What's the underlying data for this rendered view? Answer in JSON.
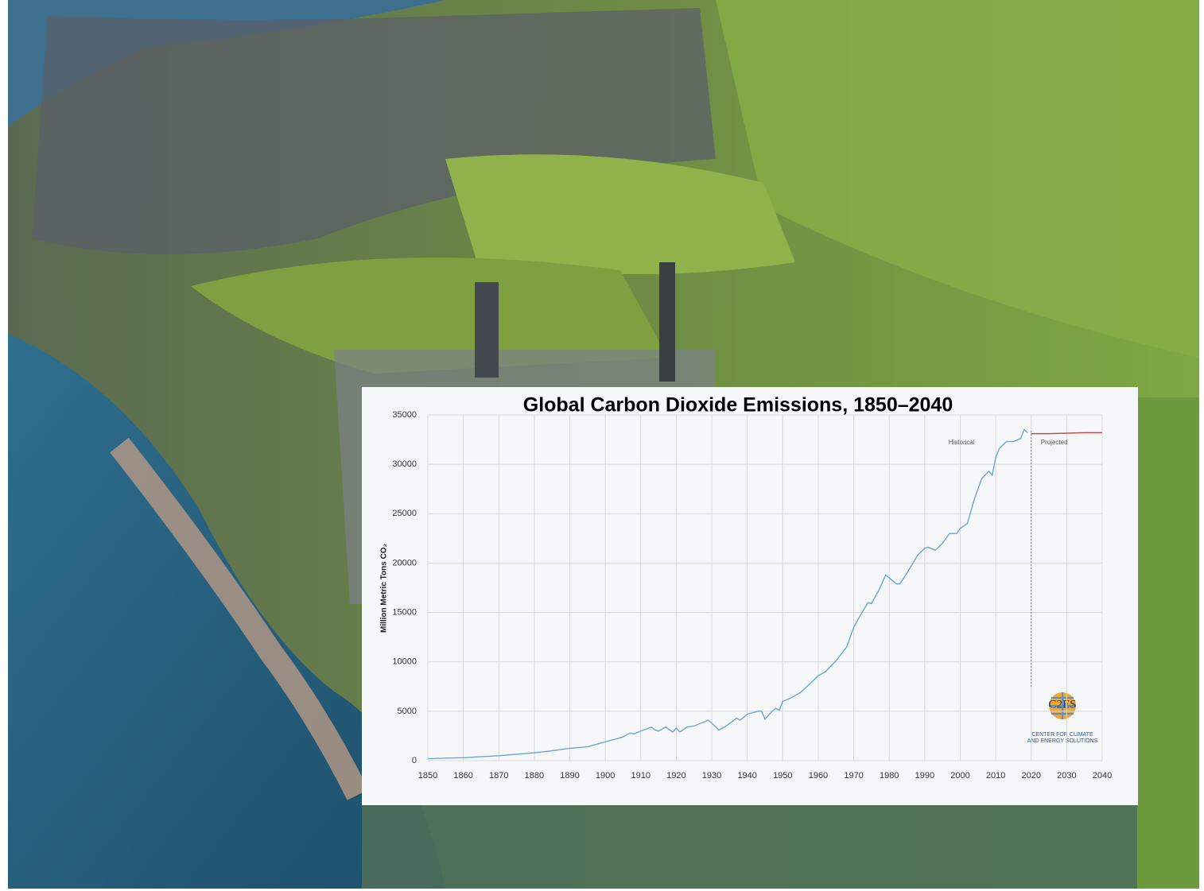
{
  "chart_data": {
    "type": "line",
    "title": "Global Carbon Dioxide Emissions, 1850–2040",
    "y_label": "Million Metric Tons CO₂",
    "annotations": [
      "Historical",
      "Projected"
    ],
    "divider_x": 2020,
    "logo": {
      "name": "C2ES",
      "line1": "CENTER FOR CLIMATE",
      "line2": "AND ENERGY SOLUTIONS"
    },
    "xlim": [
      1850,
      2040
    ],
    "ylim": [
      0,
      35000
    ],
    "xticks": [
      1850,
      1860,
      1870,
      1880,
      1890,
      1900,
      1910,
      1920,
      1930,
      1940,
      1950,
      1960,
      1970,
      1980,
      1990,
      2000,
      2010,
      2020,
      2030,
      2040
    ],
    "yticks": [
      0,
      5000,
      10000,
      15000,
      20000,
      25000,
      30000,
      35000
    ],
    "grid": true,
    "series": [
      {
        "name": "Historical",
        "color": "#6fa3d8",
        "x": [
          1850,
          1855,
          1860,
          1865,
          1870,
          1875,
          1880,
          1885,
          1890,
          1895,
          1900,
          1903,
          1905,
          1907,
          1908,
          1910,
          1913,
          1914,
          1915,
          1917,
          1919,
          1920,
          1921,
          1923,
          1925,
          1927,
          1929,
          1930,
          1932,
          1934,
          1937,
          1938,
          1940,
          1943,
          1944,
          1945,
          1946,
          1947,
          1948,
          1949,
          1950,
          1952,
          1955,
          1958,
          1960,
          1962,
          1965,
          1968,
          1970,
          1972,
          1974,
          1975,
          1977,
          1979,
          1980,
          1982,
          1983,
          1985,
          1988,
          1990,
          1991,
          1993,
          1995,
          1997,
          1999,
          2000,
          2002,
          2004,
          2006,
          2008,
          2009,
          2010,
          2011,
          2013,
          2015,
          2017,
          2018,
          2019
        ],
        "values": [
          200,
          260,
          300,
          400,
          500,
          650,
          800,
          1000,
          1250,
          1400,
          1900,
          2200,
          2400,
          2800,
          2700,
          3000,
          3400,
          3100,
          3000,
          3400,
          2900,
          3300,
          2900,
          3400,
          3500,
          3800,
          4100,
          3800,
          3100,
          3500,
          4300,
          4100,
          4700,
          5000,
          5000,
          4200,
          4600,
          5000,
          5300,
          5100,
          6000,
          6300,
          6900,
          7900,
          8600,
          9000,
          10100,
          11500,
          13500,
          14800,
          16000,
          15900,
          17200,
          18800,
          18500,
          17900,
          17900,
          19000,
          20800,
          21500,
          21600,
          21300,
          22000,
          23000,
          23000,
          23500,
          24000,
          26500,
          28500,
          29300,
          28900,
          30700,
          31600,
          32300,
          32300,
          32600,
          33500,
          33200
        ]
      },
      {
        "name": "Projected",
        "color": "#c0504d",
        "x": [
          2020,
          2025,
          2030,
          2035,
          2040
        ],
        "values": [
          33100,
          33100,
          33150,
          33200,
          33200
        ]
      }
    ]
  }
}
